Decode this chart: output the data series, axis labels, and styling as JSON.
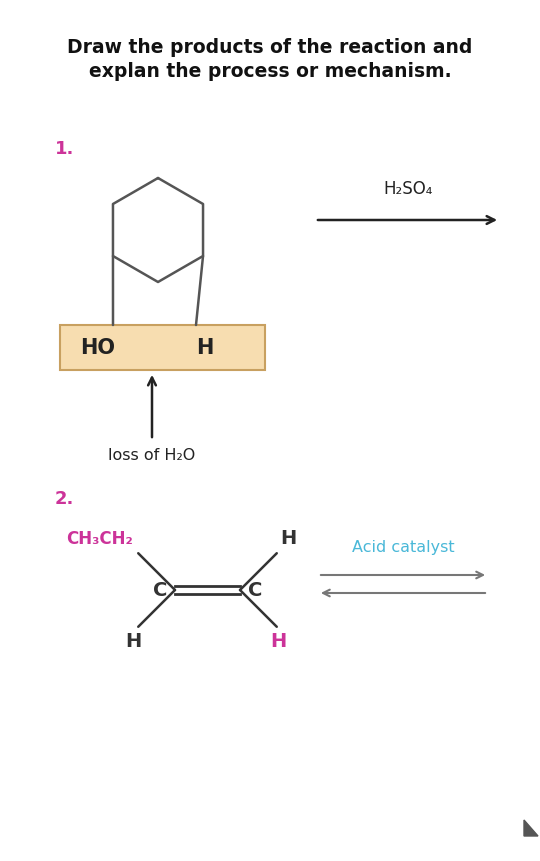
{
  "title_line1": "Draw the products of the reaction and",
  "title_line2": "explan the process or mechanism.",
  "title_fontsize": 13.5,
  "bg_color": "#ffffff",
  "label1_color": "#cc3399",
  "label2_color": "#cc3399",
  "h2so4_text": "H₂SO₄",
  "h2so4_color": "#222222",
  "acid_catalyst_text": "Acid catalyst",
  "acid_catalyst_color": "#4ab8d8",
  "loss_h2o_text": "loss of H₂O",
  "loss_h2o_color": "#222222",
  "highlight_box_color": "#f7ddb0",
  "highlight_box_edge": "#c8a060",
  "ch3ch2_color": "#cc3399",
  "h_pink_color": "#cc3399",
  "h_black_color": "#333333",
  "c_color": "#333333",
  "bond_color": "#555555",
  "arrow_color": "#222222",
  "equil_arrow_color": "#777777"
}
